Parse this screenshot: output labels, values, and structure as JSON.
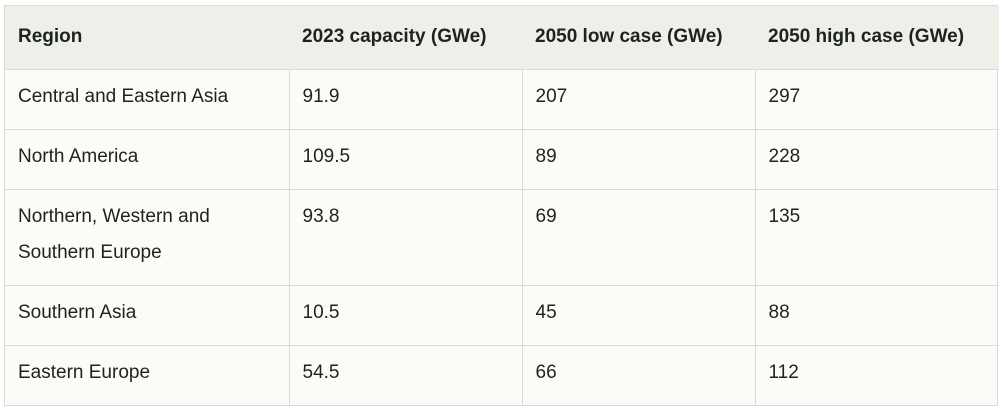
{
  "table": {
    "headers": [
      "Region",
      "2023 capacity (GWe)",
      "2050 low case (GWe)",
      "2050 high case (GWe)"
    ],
    "rows": [
      {
        "region": "Central and Eastern Asia",
        "capacity_2023": "91.9",
        "low_2050": "207",
        "high_2050": "297"
      },
      {
        "region": "North America",
        "capacity_2023": "109.5",
        "low_2050": "89",
        "high_2050": "228"
      },
      {
        "region": "Northern, Western and Southern Europe",
        "capacity_2023": "93.8",
        "low_2050": "69",
        "high_2050": "135"
      },
      {
        "region": "Southern Asia",
        "capacity_2023": "10.5",
        "low_2050": "45",
        "high_2050": "88"
      },
      {
        "region": "Eastern Europe",
        "capacity_2023": "54.5",
        "low_2050": "66",
        "high_2050": "112"
      }
    ]
  },
  "colors": {
    "header_bg": "#eeefe9",
    "body_bg": "#fbfbf7",
    "border": "#d8dcd4",
    "text": "#1c2320"
  }
}
